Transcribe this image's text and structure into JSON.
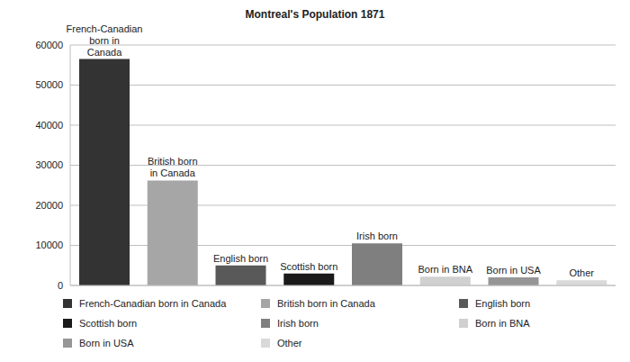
{
  "chart_data": {
    "type": "bar",
    "title": "Montreal's Population 1871",
    "categories": [
      "French-Canadian born in Canada",
      "British born in Canada",
      "English born",
      "Scottish born",
      "Irish born",
      "Born in BNA",
      "Born in USA",
      "Other"
    ],
    "values": [
      56500,
      26200,
      5000,
      3000,
      10500,
      2200,
      2000,
      1300
    ],
    "colors": [
      "#333333",
      "#a6a6a6",
      "#595959",
      "#1a1a1a",
      "#7f7f7f",
      "#d0d0d0",
      "#969696",
      "#d9d9d9"
    ],
    "ylim": [
      0,
      60000
    ],
    "yticks": [
      0,
      10000,
      20000,
      30000,
      40000,
      50000,
      60000
    ],
    "grid": true,
    "legend": "bottom",
    "tick_labels": "y"
  }
}
